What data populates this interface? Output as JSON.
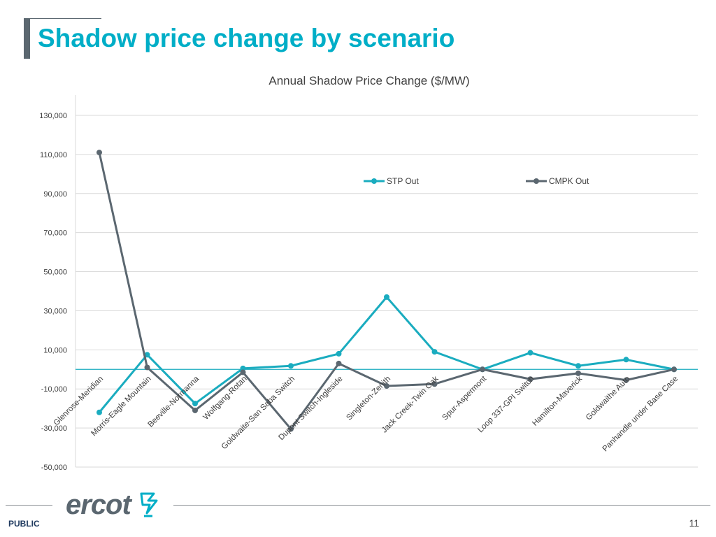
{
  "slide": {
    "title": "Shadow price change by scenario",
    "footer_label": "PUBLIC",
    "page_number": "11",
    "logo_text": "ercot"
  },
  "colors": {
    "title": "#00aec7",
    "stp": "#1aacbf",
    "cmpk": "#5b6770",
    "zero_line": "#1aacbf",
    "grid": "#d9d9d9"
  },
  "chart_data": {
    "type": "line",
    "title": "Annual Shadow Price Change ($/MW)",
    "xlabel": "",
    "ylabel": "",
    "ylim": [
      -50000,
      130000
    ],
    "yticks": [
      130000,
      110000,
      90000,
      70000,
      50000,
      30000,
      10000,
      -10000,
      -30000,
      -50000
    ],
    "ytick_labels": [
      "130,000",
      "110,000",
      "90,000",
      "70,000",
      "50,000",
      "30,000",
      "10,000",
      "-10,000",
      "-30,000",
      "-50,000"
    ],
    "grid": true,
    "legend_position": "top-center",
    "categories": [
      "Glenrose-Meridian",
      "Morris-Eagle Mountain",
      "Beeville-Normanna",
      "Wolfgang-Rotan",
      "Goldwaite-San Saba Switch",
      "Dupont Switch-Ingleside",
      "Singleton-Zenith",
      "Jack Creek-Twin Oak",
      "Spur-Aspermont",
      "Loop 337-GPI Switch",
      "Hamilton-Maverick",
      "Goldwaithe Auto",
      "Panhandle under Base Case"
    ],
    "series": [
      {
        "name": "STP Out",
        "values": [
          -22000,
          7500,
          -17500,
          500,
          1800,
          8000,
          37000,
          9000,
          0,
          8500,
          1800,
          5000,
          0
        ]
      },
      {
        "name": "CMPK Out",
        "values": [
          111000,
          1000,
          -21000,
          -1500,
          -30500,
          3000,
          -8500,
          -7500,
          0,
          -5000,
          -2000,
          -5500,
          0
        ]
      }
    ]
  }
}
